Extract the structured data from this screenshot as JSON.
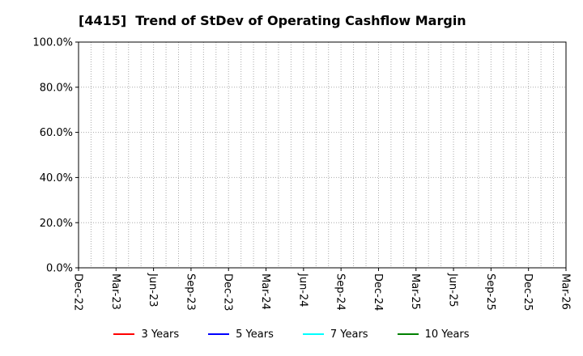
{
  "page": {
    "background": "#ffffff"
  },
  "chart_data": {
    "type": "line",
    "title": "[4415]  Trend of StDev of Operating Cashflow Margin",
    "x_ticks": [
      "Dec-22",
      "Mar-23",
      "Jun-23",
      "Sep-23",
      "Dec-23",
      "Mar-24",
      "Jun-24",
      "Sep-24",
      "Dec-24",
      "Mar-25",
      "Jun-25",
      "Sep-25",
      "Dec-25",
      "Mar-26"
    ],
    "x_minor_between": 2,
    "y_ticks": [
      "0.0%",
      "20.0%",
      "40.0%",
      "60.0%",
      "80.0%",
      "100.0%"
    ],
    "ylim": [
      0,
      100
    ],
    "grid": {
      "on": true,
      "style": "dotted",
      "color": "#aaaaaa"
    },
    "frame_color": "#000000",
    "tick_color": "#000000",
    "legend_position": "bottom",
    "series": [
      {
        "name": "3 Years",
        "color": "#ff0000",
        "x": [],
        "values": []
      },
      {
        "name": "5 Years",
        "color": "#0000ff",
        "x": [],
        "values": []
      },
      {
        "name": "7 Years",
        "color": "#00ffff",
        "x": [],
        "values": []
      },
      {
        "name": "10 Years",
        "color": "#008000",
        "x": [],
        "values": []
      }
    ]
  }
}
